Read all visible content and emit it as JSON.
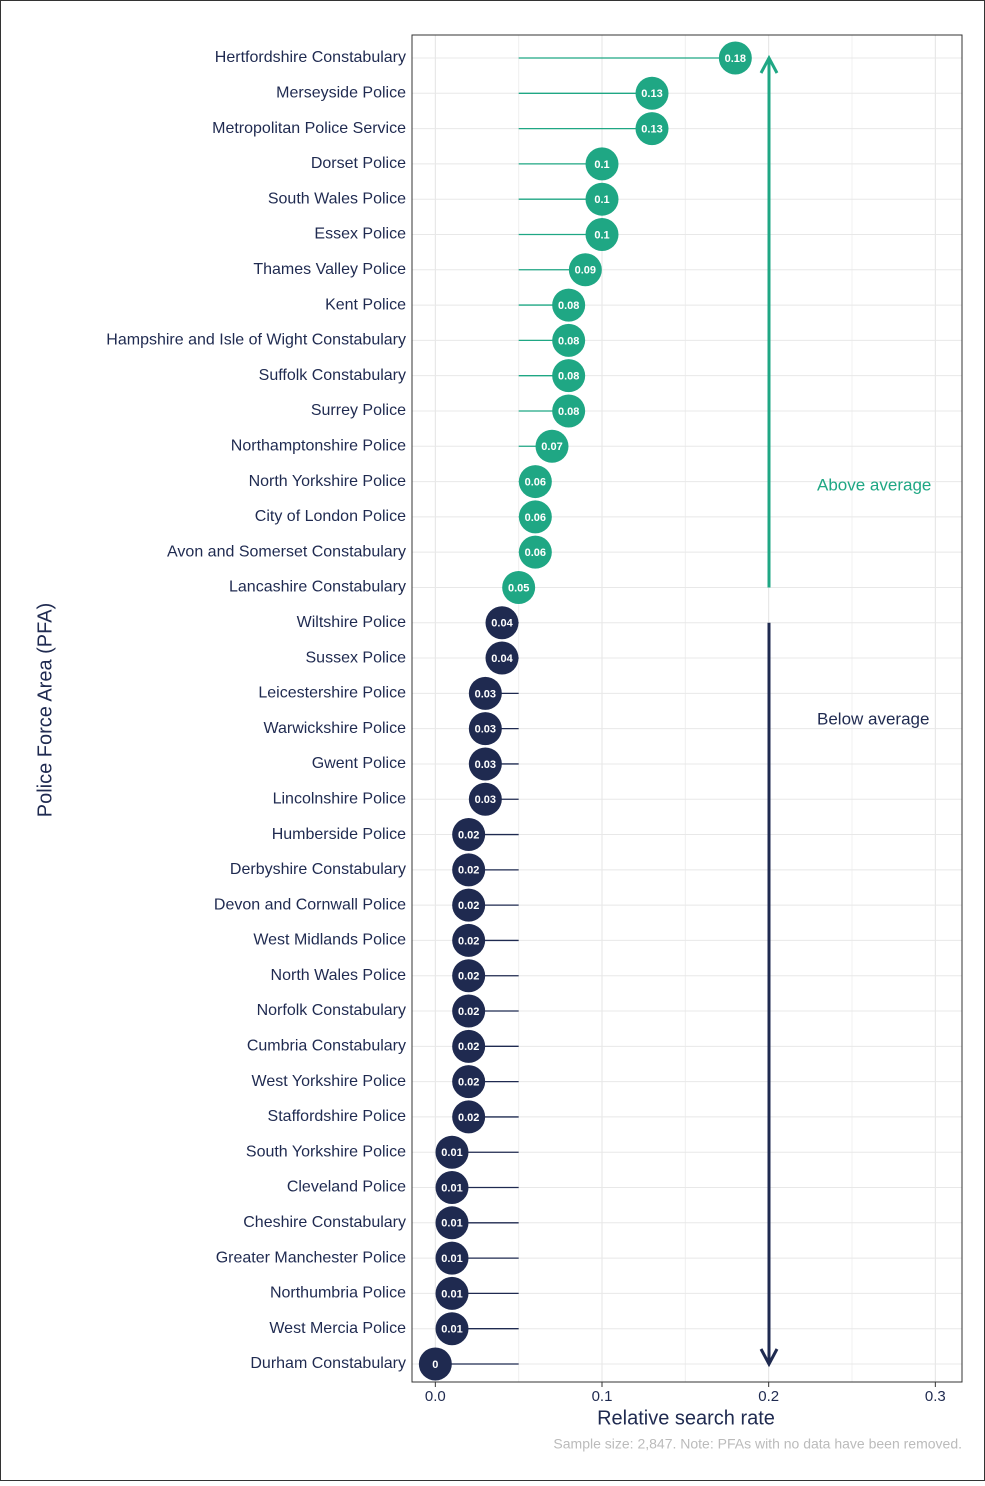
{
  "chart_data": {
    "type": "lollipop",
    "x_label": "Relative search rate",
    "y_label": "Police Force Area (PFA)",
    "caption": "Sample size: 2,847. Note: PFAs with no data have been removed.",
    "categories": [
      "Hertfordshire Constabulary",
      "Merseyside Police",
      "Metropolitan Police Service",
      "Dorset Police",
      "South Wales Police",
      "Essex Police",
      "Thames Valley Police",
      "Kent Police",
      "Hampshire and Isle of Wight Constabulary",
      "Suffolk Constabulary",
      "Surrey Police",
      "Northamptonshire Police",
      "North Yorkshire Police",
      "City of London Police",
      "Avon and Somerset Constabulary",
      "Lancashire Constabulary",
      "Wiltshire Police",
      "Sussex Police",
      "Leicestershire Police",
      "Warwickshire Police",
      "Gwent Police",
      "Lincolnshire Police",
      "Humberside Police",
      "Derbyshire Constabulary",
      "Devon and Cornwall Police",
      "West Midlands Police",
      "North Wales Police",
      "Norfolk Constabulary",
      "Cumbria Constabulary",
      "West Yorkshire Police",
      "Staffordshire Police",
      "South Yorkshire Police",
      "Cleveland Police",
      "Cheshire Constabulary",
      "Greater Manchester Police",
      "Northumbria Police",
      "West Mercia Police",
      "Durham Constabulary"
    ],
    "series": [
      {
        "name": "Above average",
        "color": "#1fa784",
        "values": [
          0.18,
          0.13,
          0.13,
          0.1,
          0.1,
          0.1,
          0.09,
          0.08,
          0.08,
          0.08,
          0.08,
          0.07,
          0.06,
          0.06,
          0.06,
          0.05,
          null,
          null,
          null,
          null,
          null,
          null,
          null,
          null,
          null,
          null,
          null,
          null,
          null,
          null,
          null,
          null,
          null,
          null,
          null,
          null,
          null,
          null
        ]
      },
      {
        "name": "Below average",
        "color": "#1f2a50",
        "values": [
          null,
          null,
          null,
          null,
          null,
          null,
          null,
          null,
          null,
          null,
          null,
          null,
          null,
          null,
          null,
          null,
          0.04,
          0.04,
          0.03,
          0.03,
          0.03,
          0.03,
          0.02,
          0.02,
          0.02,
          0.02,
          0.02,
          0.02,
          0.02,
          0.02,
          0.02,
          0.01,
          0.01,
          0.01,
          0.01,
          0.01,
          0.01,
          0
        ]
      }
    ],
    "reference": 0.05,
    "xlim": [
      -0.014,
      0.316
    ],
    "xticks": [
      {
        "value": 0,
        "label": "0.0"
      },
      0.1,
      0.2,
      0.3
    ],
    "minor_xticks": [
      0.05,
      0.15,
      0.25
    ],
    "grid": true
  }
}
